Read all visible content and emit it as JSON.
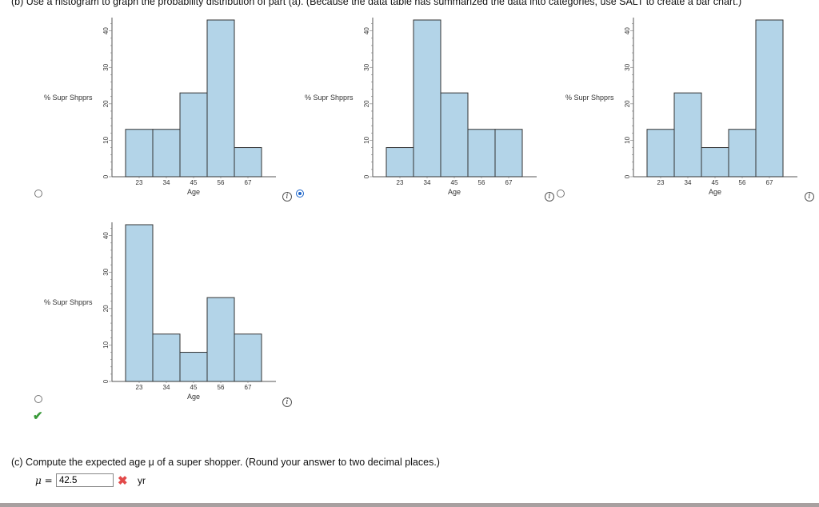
{
  "part_b": {
    "prompt": "(b)   Use a histogram to graph the probability distribution of part (a). (Because the data table has summarized the data into categories, use SALT to create a bar chart.)"
  },
  "chart_data": [
    {
      "type": "bar",
      "categories": [
        "23",
        "34",
        "45",
        "56",
        "67"
      ],
      "values": [
        13,
        13,
        23,
        43,
        8
      ],
      "xlabel": "Age",
      "ylabel": "% Supr Shpprs",
      "ylim": [
        0,
        43
      ],
      "yticks": [
        "0",
        "10",
        "20",
        "30",
        "40"
      ],
      "bar_color": "#b3d4e8",
      "grid": false,
      "selected": false
    },
    {
      "type": "bar",
      "categories": [
        "23",
        "34",
        "45",
        "56",
        "67"
      ],
      "values": [
        8,
        43,
        23,
        13,
        13
      ],
      "xlabel": "Age",
      "ylabel": "% Supr Shpprs",
      "ylim": [
        0,
        43
      ],
      "yticks": [
        "0",
        "10",
        "20",
        "30",
        "40"
      ],
      "bar_color": "#b3d4e8",
      "grid": false,
      "selected": true
    },
    {
      "type": "bar",
      "categories": [
        "23",
        "34",
        "45",
        "56",
        "67"
      ],
      "values": [
        13,
        23,
        8,
        13,
        43
      ],
      "xlabel": "Age",
      "ylabel": "% Supr Shpprs",
      "ylim": [
        0,
        43
      ],
      "yticks": [
        "0",
        "10",
        "20",
        "30",
        "40"
      ],
      "bar_color": "#b3d4e8",
      "grid": false,
      "selected": false
    },
    {
      "type": "bar",
      "categories": [
        "23",
        "34",
        "45",
        "56",
        "67"
      ],
      "values": [
        43,
        13,
        8,
        23,
        13
      ],
      "xlabel": "Age",
      "ylabel": "% Supr Shpprs",
      "ylim": [
        0,
        43
      ],
      "yticks": [
        "0",
        "10",
        "20",
        "30",
        "40"
      ],
      "bar_color": "#b3d4e8",
      "grid": false,
      "selected": false
    }
  ],
  "part_c": {
    "prompt": "(c)   Compute the expected age μ of a super shopper. (Round your answer to two decimal places.)",
    "mu_label": "μ =",
    "answer_value": "42.5",
    "unit": "yr",
    "status": "incorrect"
  },
  "icons": {
    "info": "info-icon",
    "correct": "check-icon",
    "incorrect": "x-icon"
  },
  "colors": {
    "selected_radio": "#1a63c8",
    "correct": "#3a9a3a",
    "incorrect": "#e24a4a"
  }
}
